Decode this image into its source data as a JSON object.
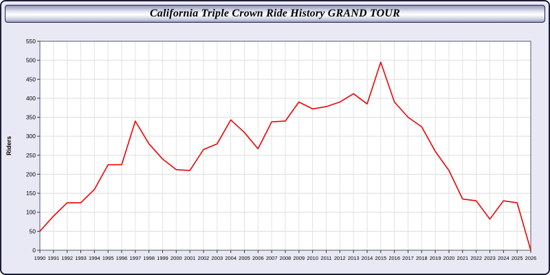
{
  "window": {
    "title": "California Triple Crown Ride History GRAND TOUR"
  },
  "chart_data": {
    "type": "line",
    "title": "California Triple Crown Ride History GRAND TOUR",
    "xlabel": "",
    "ylabel": "Riders",
    "ylim": [
      0,
      550
    ],
    "ytick_step": 50,
    "grid": true,
    "legend_position": "none",
    "line_color": "#ee0000",
    "plot_background": "#ffffff",
    "page_background": "#e9e9f5",
    "x": [
      1990,
      1991,
      1992,
      1993,
      1994,
      1995,
      1996,
      1997,
      1998,
      1999,
      2000,
      2001,
      2002,
      2003,
      2004,
      2005,
      2006,
      2007,
      2008,
      2009,
      2010,
      2011,
      2012,
      2013,
      2014,
      2015,
      2016,
      2017,
      2018,
      2019,
      2020,
      2021,
      2022,
      2023,
      2024,
      2025,
      2026
    ],
    "series": [
      {
        "name": "Riders",
        "values": [
          50,
          90,
          125,
          125,
          160,
          225,
          225,
          340,
          280,
          240,
          212,
          210,
          265,
          280,
          343,
          310,
          267,
          338,
          340,
          390,
          372,
          378,
          390,
          412,
          385,
          495,
          390,
          350,
          325,
          260,
          210,
          135,
          130,
          82,
          130,
          125,
          0
        ]
      }
    ]
  }
}
